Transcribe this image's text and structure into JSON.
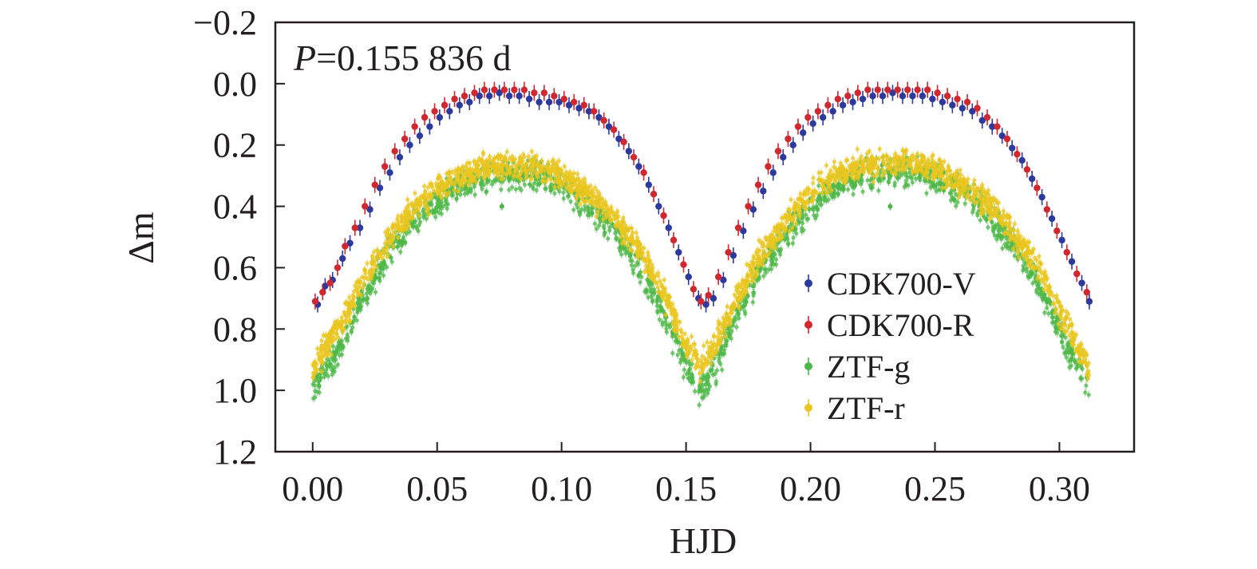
{
  "chart_data": {
    "type": "scatter",
    "xlabel": "HJD",
    "ylabel": "Δm",
    "annotation": {
      "italic": "P",
      "text": "=0.155 836 d"
    },
    "xlim": [
      -0.015,
      0.33
    ],
    "ylim": [
      1.2,
      -0.2
    ],
    "y_inverted": true,
    "xticks": [
      0.0,
      0.05,
      0.1,
      0.15,
      0.2,
      0.25,
      0.3
    ],
    "xtick_labels": [
      "0.00",
      "0.05",
      "0.10",
      "0.15",
      "0.20",
      "0.25",
      "0.30"
    ],
    "yticks": [
      -0.2,
      0.0,
      0.2,
      0.4,
      0.6,
      0.8,
      1.0,
      1.2
    ],
    "ytick_labels": [
      "−0.2",
      "0.0",
      "0.2",
      "0.4",
      "0.6",
      "0.8",
      "1.0",
      "1.2"
    ],
    "grid": false,
    "legend_position": "right-center",
    "series": [
      {
        "name": "CDK700-V",
        "color": "#2b3a9c",
        "marker": "dot-errorbar",
        "points": [
          [
            0.002,
            0.72
          ],
          [
            0.005,
            0.66
          ],
          [
            0.008,
            0.64
          ],
          [
            0.012,
            0.57
          ],
          [
            0.015,
            0.52
          ],
          [
            0.019,
            0.47
          ],
          [
            0.023,
            0.41
          ],
          [
            0.027,
            0.34
          ],
          [
            0.031,
            0.29
          ],
          [
            0.035,
            0.24
          ],
          [
            0.039,
            0.2
          ],
          [
            0.043,
            0.17
          ],
          [
            0.047,
            0.14
          ],
          [
            0.051,
            0.11
          ],
          [
            0.055,
            0.09
          ],
          [
            0.059,
            0.07
          ],
          [
            0.063,
            0.06
          ],
          [
            0.067,
            0.04
          ],
          [
            0.071,
            0.04
          ],
          [
            0.075,
            0.03
          ],
          [
            0.079,
            0.04
          ],
          [
            0.083,
            0.04
          ],
          [
            0.087,
            0.05
          ],
          [
            0.091,
            0.06
          ],
          [
            0.095,
            0.06
          ],
          [
            0.099,
            0.06
          ],
          [
            0.103,
            0.07
          ],
          [
            0.107,
            0.08
          ],
          [
            0.111,
            0.09
          ],
          [
            0.115,
            0.11
          ],
          [
            0.119,
            0.14
          ],
          [
            0.123,
            0.18
          ],
          [
            0.127,
            0.22
          ],
          [
            0.131,
            0.27
          ],
          [
            0.135,
            0.33
          ],
          [
            0.139,
            0.4
          ],
          [
            0.143,
            0.47
          ],
          [
            0.147,
            0.55
          ],
          [
            0.151,
            0.63
          ],
          [
            0.155,
            0.7
          ],
          [
            0.158,
            0.72
          ],
          [
            0.161,
            0.7
          ],
          [
            0.165,
            0.64
          ],
          [
            0.169,
            0.56
          ],
          [
            0.173,
            0.48
          ],
          [
            0.177,
            0.41
          ],
          [
            0.181,
            0.35
          ],
          [
            0.185,
            0.29
          ],
          [
            0.189,
            0.24
          ],
          [
            0.193,
            0.2
          ],
          [
            0.197,
            0.16
          ],
          [
            0.201,
            0.13
          ],
          [
            0.205,
            0.11
          ],
          [
            0.209,
            0.09
          ],
          [
            0.213,
            0.07
          ],
          [
            0.217,
            0.06
          ],
          [
            0.221,
            0.05
          ],
          [
            0.225,
            0.04
          ],
          [
            0.229,
            0.04
          ],
          [
            0.233,
            0.03
          ],
          [
            0.237,
            0.04
          ],
          [
            0.241,
            0.04
          ],
          [
            0.245,
            0.04
          ],
          [
            0.249,
            0.05
          ],
          [
            0.253,
            0.06
          ],
          [
            0.257,
            0.07
          ],
          [
            0.261,
            0.08
          ],
          [
            0.265,
            0.09
          ],
          [
            0.269,
            0.12
          ],
          [
            0.273,
            0.14
          ],
          [
            0.277,
            0.17
          ],
          [
            0.281,
            0.21
          ],
          [
            0.285,
            0.25
          ],
          [
            0.289,
            0.31
          ],
          [
            0.293,
            0.37
          ],
          [
            0.297,
            0.44
          ],
          [
            0.301,
            0.51
          ],
          [
            0.305,
            0.58
          ],
          [
            0.309,
            0.65
          ],
          [
            0.312,
            0.71
          ]
        ]
      },
      {
        "name": "CDK700-R",
        "color": "#d1272f",
        "marker": "dot-errorbar",
        "points": [
          [
            0.001,
            0.71
          ],
          [
            0.004,
            0.68
          ],
          [
            0.007,
            0.65
          ],
          [
            0.01,
            0.6
          ],
          [
            0.013,
            0.53
          ],
          [
            0.017,
            0.47
          ],
          [
            0.021,
            0.4
          ],
          [
            0.025,
            0.33
          ],
          [
            0.029,
            0.27
          ],
          [
            0.033,
            0.22
          ],
          [
            0.037,
            0.18
          ],
          [
            0.041,
            0.14
          ],
          [
            0.045,
            0.11
          ],
          [
            0.049,
            0.09
          ],
          [
            0.053,
            0.07
          ],
          [
            0.057,
            0.05
          ],
          [
            0.061,
            0.04
          ],
          [
            0.065,
            0.03
          ],
          [
            0.069,
            0.02
          ],
          [
            0.073,
            0.02
          ],
          [
            0.077,
            0.02
          ],
          [
            0.081,
            0.02
          ],
          [
            0.085,
            0.02
          ],
          [
            0.089,
            0.03
          ],
          [
            0.093,
            0.03
          ],
          [
            0.097,
            0.04
          ],
          [
            0.101,
            0.05
          ],
          [
            0.105,
            0.06
          ],
          [
            0.109,
            0.07
          ],
          [
            0.113,
            0.09
          ],
          [
            0.117,
            0.12
          ],
          [
            0.121,
            0.15
          ],
          [
            0.125,
            0.19
          ],
          [
            0.129,
            0.24
          ],
          [
            0.133,
            0.29
          ],
          [
            0.137,
            0.36
          ],
          [
            0.141,
            0.43
          ],
          [
            0.145,
            0.51
          ],
          [
            0.149,
            0.59
          ],
          [
            0.153,
            0.67
          ],
          [
            0.156,
            0.71
          ],
          [
            0.159,
            0.69
          ],
          [
            0.163,
            0.63
          ],
          [
            0.167,
            0.55
          ],
          [
            0.171,
            0.47
          ],
          [
            0.175,
            0.4
          ],
          [
            0.179,
            0.33
          ],
          [
            0.183,
            0.27
          ],
          [
            0.187,
            0.22
          ],
          [
            0.191,
            0.18
          ],
          [
            0.195,
            0.14
          ],
          [
            0.199,
            0.11
          ],
          [
            0.203,
            0.09
          ],
          [
            0.207,
            0.07
          ],
          [
            0.211,
            0.05
          ],
          [
            0.215,
            0.04
          ],
          [
            0.219,
            0.03
          ],
          [
            0.223,
            0.02
          ],
          [
            0.227,
            0.02
          ],
          [
            0.231,
            0.02
          ],
          [
            0.235,
            0.02
          ],
          [
            0.239,
            0.02
          ],
          [
            0.243,
            0.02
          ],
          [
            0.247,
            0.02
          ],
          [
            0.251,
            0.03
          ],
          [
            0.255,
            0.04
          ],
          [
            0.259,
            0.05
          ],
          [
            0.263,
            0.06
          ],
          [
            0.267,
            0.08
          ],
          [
            0.271,
            0.11
          ],
          [
            0.275,
            0.14
          ],
          [
            0.279,
            0.18
          ],
          [
            0.283,
            0.23
          ],
          [
            0.287,
            0.28
          ],
          [
            0.291,
            0.34
          ],
          [
            0.295,
            0.41
          ],
          [
            0.299,
            0.48
          ],
          [
            0.303,
            0.55
          ],
          [
            0.307,
            0.62
          ],
          [
            0.311,
            0.68
          ]
        ]
      },
      {
        "name": "ZTF-g",
        "color": "#4db848",
        "marker": "dense-errorbar-band",
        "band_center": [
          [
            0.0,
            1.0
          ],
          [
            0.01,
            0.88
          ],
          [
            0.02,
            0.7
          ],
          [
            0.03,
            0.56
          ],
          [
            0.04,
            0.45
          ],
          [
            0.05,
            0.38
          ],
          [
            0.06,
            0.33
          ],
          [
            0.07,
            0.3
          ],
          [
            0.08,
            0.29
          ],
          [
            0.09,
            0.3
          ],
          [
            0.1,
            0.33
          ],
          [
            0.11,
            0.39
          ],
          [
            0.12,
            0.47
          ],
          [
            0.13,
            0.58
          ],
          [
            0.14,
            0.73
          ],
          [
            0.15,
            0.92
          ],
          [
            0.156,
            1.0
          ],
          [
            0.162,
            0.92
          ],
          [
            0.17,
            0.76
          ],
          [
            0.18,
            0.61
          ],
          [
            0.19,
            0.49
          ],
          [
            0.2,
            0.4
          ],
          [
            0.21,
            0.34
          ],
          [
            0.22,
            0.3
          ],
          [
            0.23,
            0.29
          ],
          [
            0.24,
            0.29
          ],
          [
            0.25,
            0.31
          ],
          [
            0.26,
            0.35
          ],
          [
            0.27,
            0.42
          ],
          [
            0.28,
            0.51
          ],
          [
            0.29,
            0.63
          ],
          [
            0.3,
            0.8
          ],
          [
            0.312,
            1.0
          ]
        ],
        "band_halfwidth": 0.05,
        "outliers": [
          [
            0.076,
            0.4
          ],
          [
            0.232,
            0.4
          ]
        ]
      },
      {
        "name": "ZTF-r",
        "color": "#e9c61f",
        "marker": "dense-errorbar-band",
        "band_center": [
          [
            0.0,
            0.93
          ],
          [
            0.01,
            0.8
          ],
          [
            0.02,
            0.64
          ],
          [
            0.03,
            0.51
          ],
          [
            0.04,
            0.41
          ],
          [
            0.05,
            0.34
          ],
          [
            0.06,
            0.3
          ],
          [
            0.07,
            0.27
          ],
          [
            0.08,
            0.26
          ],
          [
            0.09,
            0.27
          ],
          [
            0.1,
            0.3
          ],
          [
            0.11,
            0.35
          ],
          [
            0.12,
            0.43
          ],
          [
            0.13,
            0.53
          ],
          [
            0.14,
            0.67
          ],
          [
            0.15,
            0.85
          ],
          [
            0.156,
            0.92
          ],
          [
            0.162,
            0.85
          ],
          [
            0.17,
            0.7
          ],
          [
            0.18,
            0.56
          ],
          [
            0.19,
            0.45
          ],
          [
            0.2,
            0.36
          ],
          [
            0.21,
            0.3
          ],
          [
            0.22,
            0.27
          ],
          [
            0.23,
            0.26
          ],
          [
            0.24,
            0.26
          ],
          [
            0.25,
            0.28
          ],
          [
            0.26,
            0.32
          ],
          [
            0.27,
            0.38
          ],
          [
            0.28,
            0.47
          ],
          [
            0.29,
            0.58
          ],
          [
            0.3,
            0.74
          ],
          [
            0.312,
            0.93
          ]
        ],
        "band_halfwidth": 0.045
      }
    ]
  }
}
